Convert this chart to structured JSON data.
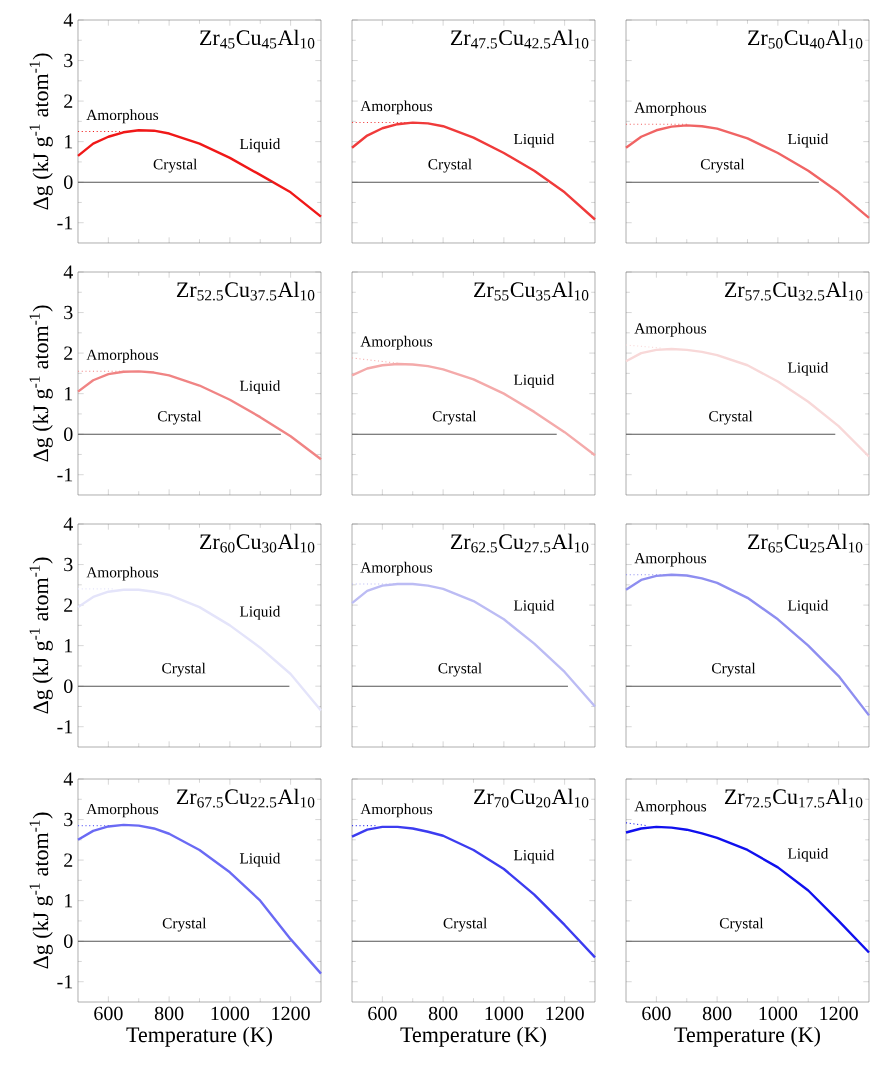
{
  "chart_data": [
    {
      "type": "line",
      "title": "Zr$_{45}$Cu$_{45}$Al$_{10}$",
      "ylabel": "Δg (kJ g$^{-1}$ atom$^{-1}$)",
      "xlim": [
        500,
        1300
      ],
      "ylim": [
        -1.5,
        4
      ],
      "xticks": [
        600,
        800,
        1000,
        1200
      ],
      "yticks": [
        -1,
        0,
        1,
        2,
        3,
        4
      ],
      "tick_labels": "y",
      "series": [
        {
          "name": "Liquid",
          "color": "#f01818",
          "x": [
            500,
            550,
            600,
            650,
            700,
            750,
            800,
            900,
            1000,
            1100,
            1200,
            1300
          ],
          "values": [
            0.65,
            0.95,
            1.12,
            1.23,
            1.28,
            1.27,
            1.2,
            0.95,
            0.6,
            0.18,
            -0.25,
            -0.85
          ]
        },
        {
          "name": "Amorphous",
          "line_style": "dotted",
          "color": "#f01818",
          "x": [
            500,
            690
          ],
          "values": [
            1.25,
            1.25
          ]
        },
        {
          "name": "Crystal",
          "color": "#555555",
          "x": [
            500,
            1140
          ],
          "values": [
            0,
            0
          ]
        }
      ]
    },
    {
      "type": "line",
      "title": "Zr$_{47.5}$Cu$_{42.5}$Al$_{10}$",
      "xlim": [
        500,
        1300
      ],
      "ylim": [
        -1.5,
        4
      ],
      "xticks": [
        600,
        800,
        1000,
        1200
      ],
      "yticks": [
        -1,
        0,
        1,
        2,
        3,
        4
      ],
      "tick_labels": false,
      "series": [
        {
          "name": "Liquid",
          "color": "#f03a3a",
          "x": [
            500,
            550,
            600,
            650,
            700,
            750,
            800,
            900,
            1000,
            1100,
            1200,
            1300
          ],
          "values": [
            0.85,
            1.15,
            1.33,
            1.43,
            1.47,
            1.45,
            1.38,
            1.1,
            0.72,
            0.28,
            -0.25,
            -0.92
          ]
        },
        {
          "name": "Amorphous",
          "line_style": "dotted",
          "color": "#f03a3a",
          "x": [
            500,
            690
          ],
          "values": [
            1.47,
            1.47
          ]
        },
        {
          "name": "Crystal",
          "color": "#555555",
          "x": [
            500,
            1145
          ],
          "values": [
            0,
            0
          ]
        }
      ]
    },
    {
      "type": "line",
      "title": "Zr$_{50}$Cu$_{40}$Al$_{10}$",
      "xlim": [
        500,
        1300
      ],
      "ylim": [
        -1.5,
        4
      ],
      "xticks": [
        600,
        800,
        1000,
        1200
      ],
      "yticks": [
        -1,
        0,
        1,
        2,
        3,
        4
      ],
      "tick_labels": false,
      "series": [
        {
          "name": "Liquid",
          "color": "#f06464",
          "x": [
            500,
            550,
            600,
            650,
            700,
            750,
            800,
            900,
            1000,
            1100,
            1200,
            1300
          ],
          "values": [
            0.85,
            1.12,
            1.28,
            1.37,
            1.4,
            1.38,
            1.32,
            1.08,
            0.72,
            0.28,
            -0.25,
            -0.88
          ]
        },
        {
          "name": "Amorphous",
          "line_style": "dotted",
          "color": "#f06464",
          "x": [
            500,
            705
          ],
          "values": [
            1.43,
            1.43
          ]
        },
        {
          "name": "Crystal",
          "color": "#555555",
          "x": [
            500,
            1135
          ],
          "values": [
            0,
            0
          ]
        }
      ]
    },
    {
      "type": "line",
      "title": "Zr$_{52.5}$Cu$_{37.5}$Al$_{10}$",
      "ylabel": "Δg (kJ g$^{-1}$ atom$^{-1}$)",
      "xlim": [
        500,
        1300
      ],
      "ylim": [
        -1.5,
        4
      ],
      "xticks": [
        600,
        800,
        1000,
        1200
      ],
      "yticks": [
        -1,
        0,
        1,
        2,
        3,
        4
      ],
      "tick_labels": "y",
      "series": [
        {
          "name": "Liquid",
          "color": "#f08484",
          "x": [
            500,
            550,
            600,
            650,
            700,
            750,
            800,
            900,
            1000,
            1100,
            1200,
            1300
          ],
          "values": [
            1.05,
            1.33,
            1.48,
            1.54,
            1.55,
            1.52,
            1.45,
            1.2,
            0.85,
            0.42,
            -0.05,
            -0.62
          ]
        },
        {
          "name": "Amorphous",
          "line_style": "dotted",
          "color": "#f08484",
          "x": [
            500,
            650
          ],
          "values": [
            1.55,
            1.55
          ]
        },
        {
          "name": "Crystal",
          "color": "#555555",
          "x": [
            500,
            1168
          ],
          "values": [
            0,
            0
          ]
        }
      ]
    },
    {
      "type": "line",
      "title": "Zr$_{55}$Cu$_{35}$Al$_{10}$",
      "xlim": [
        500,
        1300
      ],
      "ylim": [
        -1.5,
        4
      ],
      "xticks": [
        600,
        800,
        1000,
        1200
      ],
      "yticks": [
        -1,
        0,
        1,
        2,
        3,
        4
      ],
      "tick_labels": false,
      "series": [
        {
          "name": "Liquid",
          "color": "#f4aaaa",
          "x": [
            500,
            550,
            600,
            650,
            700,
            750,
            800,
            900,
            1000,
            1100,
            1200,
            1300
          ],
          "values": [
            1.45,
            1.62,
            1.7,
            1.73,
            1.72,
            1.68,
            1.6,
            1.35,
            1.0,
            0.55,
            0.05,
            -0.52
          ]
        },
        {
          "name": "Amorphous",
          "line_style": "dotted",
          "color": "#f4aaaa",
          "x": [
            500,
            650
          ],
          "values": [
            1.88,
            1.75
          ]
        },
        {
          "name": "Crystal",
          "color": "#555555",
          "x": [
            500,
            1174
          ],
          "values": [
            0,
            0
          ]
        }
      ]
    },
    {
      "type": "line",
      "title": "Zr$_{57.5}$Cu$_{32.5}$Al$_{10}$",
      "xlim": [
        500,
        1300
      ],
      "ylim": [
        -1.5,
        4
      ],
      "xticks": [
        600,
        800,
        1000,
        1200
      ],
      "yticks": [
        -1,
        0,
        1,
        2,
        3,
        4
      ],
      "tick_labels": false,
      "series": [
        {
          "name": "Liquid",
          "color": "#f8d8d8",
          "x": [
            500,
            550,
            600,
            650,
            700,
            750,
            800,
            900,
            1000,
            1100,
            1200,
            1300
          ],
          "values": [
            1.8,
            2.0,
            2.08,
            2.1,
            2.08,
            2.03,
            1.95,
            1.7,
            1.3,
            0.8,
            0.2,
            -0.55
          ]
        },
        {
          "name": "Amorphous",
          "line_style": "dotted",
          "color": "#f8d8d8",
          "x": [
            500,
            620
          ],
          "values": [
            2.2,
            2.12
          ]
        },
        {
          "name": "Crystal",
          "color": "#555555",
          "x": [
            500,
            1189
          ],
          "values": [
            0,
            0
          ]
        }
      ]
    },
    {
      "type": "line",
      "title": "Zr$_{60}$Cu$_{30}$Al$_{10}$",
      "ylabel": "Δg (kJ g$^{-1}$ atom$^{-1}$)",
      "xlim": [
        500,
        1300
      ],
      "ylim": [
        -1.5,
        4
      ],
      "xticks": [
        600,
        800,
        1000,
        1200
      ],
      "yticks": [
        -1,
        0,
        1,
        2,
        3,
        4
      ],
      "tick_labels": "y",
      "series": [
        {
          "name": "Liquid",
          "color": "#e4e4fa",
          "x": [
            500,
            550,
            600,
            650,
            700,
            750,
            800,
            900,
            1000,
            1100,
            1200,
            1300
          ],
          "values": [
            1.95,
            2.2,
            2.33,
            2.38,
            2.38,
            2.33,
            2.25,
            1.95,
            1.5,
            0.95,
            0.3,
            -0.6
          ]
        },
        {
          "name": "Amorphous",
          "line_style": "dotted",
          "color": "#e4e4fa",
          "x": [
            500,
            620
          ],
          "values": [
            2.4,
            2.4
          ]
        },
        {
          "name": "Crystal",
          "color": "#555555",
          "x": [
            500,
            1196
          ],
          "values": [
            0,
            0
          ]
        }
      ]
    },
    {
      "type": "line",
      "title": "Zr$_{62.5}$Cu$_{27.5}$Al$_{10}$",
      "xlim": [
        500,
        1300
      ],
      "ylim": [
        -1.5,
        4
      ],
      "xticks": [
        600,
        800,
        1000,
        1200
      ],
      "yticks": [
        -1,
        0,
        1,
        2,
        3,
        4
      ],
      "tick_labels": false,
      "series": [
        {
          "name": "Liquid",
          "color": "#bcbcf4",
          "x": [
            500,
            550,
            600,
            650,
            700,
            750,
            800,
            900,
            1000,
            1100,
            1200,
            1300
          ],
          "values": [
            2.05,
            2.35,
            2.48,
            2.52,
            2.52,
            2.48,
            2.4,
            2.1,
            1.65,
            1.05,
            0.35,
            -0.5
          ]
        },
        {
          "name": "Amorphous",
          "line_style": "dotted",
          "color": "#bcbcf4",
          "x": [
            500,
            650
          ],
          "values": [
            2.52,
            2.52
          ]
        },
        {
          "name": "Crystal",
          "color": "#555555",
          "x": [
            500,
            1211
          ],
          "values": [
            0,
            0
          ]
        }
      ]
    },
    {
      "type": "line",
      "title": "Zr$_{65}$Cu$_{25}$Al$_{10}$",
      "xlim": [
        500,
        1300
      ],
      "ylim": [
        -1.5,
        4
      ],
      "xticks": [
        600,
        800,
        1000,
        1200
      ],
      "yticks": [
        -1,
        0,
        1,
        2,
        3,
        4
      ],
      "tick_labels": false,
      "series": [
        {
          "name": "Liquid",
          "color": "#8e8ef0",
          "x": [
            500,
            550,
            600,
            650,
            700,
            750,
            800,
            900,
            1000,
            1100,
            1200,
            1300
          ],
          "values": [
            2.38,
            2.62,
            2.72,
            2.75,
            2.73,
            2.66,
            2.55,
            2.18,
            1.65,
            1.0,
            0.25,
            -0.72
          ]
        },
        {
          "name": "Amorphous",
          "line_style": "dotted",
          "color": "#8e8ef0",
          "x": [
            500,
            630
          ],
          "values": [
            2.75,
            2.75
          ]
        },
        {
          "name": "Crystal",
          "color": "#555555",
          "x": [
            500,
            1208
          ],
          "values": [
            0,
            0
          ]
        }
      ]
    },
    {
      "type": "line",
      "title": "Zr$_{67.5}$Cu$_{22.5}$Al$_{10}$",
      "xlabel": "Temperature (K)",
      "ylabel": "Δg (kJ g$^{-1}$ atom$^{-1}$)",
      "xlim": [
        500,
        1300
      ],
      "ylim": [
        -1.5,
        4
      ],
      "xticks": [
        600,
        800,
        1000,
        1200
      ],
      "yticks": [
        -1,
        0,
        1,
        2,
        3,
        4
      ],
      "series": [
        {
          "name": "Liquid",
          "color": "#6a6af4",
          "x": [
            500,
            550,
            600,
            650,
            700,
            750,
            800,
            900,
            1000,
            1100,
            1200,
            1300
          ],
          "values": [
            2.5,
            2.72,
            2.83,
            2.87,
            2.85,
            2.78,
            2.65,
            2.25,
            1.7,
            1.0,
            0.05,
            -0.8
          ]
        },
        {
          "name": "Amorphous",
          "line_style": "dotted",
          "color": "#6a6af4",
          "x": [
            500,
            620
          ],
          "values": [
            2.85,
            2.85
          ]
        },
        {
          "name": "Crystal",
          "color": "#555555",
          "x": [
            500,
            1200
          ],
          "values": [
            0,
            0
          ]
        }
      ]
    },
    {
      "type": "line",
      "title": "Zr$_{70}$Cu$_{20}$Al$_{10}$",
      "xlabel": "Temperature (K)",
      "xlim": [
        500,
        1300
      ],
      "ylim": [
        -1.5,
        4
      ],
      "xticks": [
        600,
        800,
        1000,
        1200
      ],
      "yticks": [
        -1,
        0,
        1,
        2,
        3,
        4
      ],
      "tick_labels": "x",
      "series": [
        {
          "name": "Liquid",
          "color": "#3c3cf0",
          "x": [
            500,
            550,
            600,
            650,
            700,
            750,
            800,
            900,
            1000,
            1100,
            1200,
            1300
          ],
          "values": [
            2.58,
            2.75,
            2.82,
            2.82,
            2.78,
            2.7,
            2.6,
            2.25,
            1.78,
            1.15,
            0.4,
            -0.4
          ]
        },
        {
          "name": "Amorphous",
          "line_style": "dotted",
          "color": "#3c3cf0",
          "x": [
            500,
            580
          ],
          "values": [
            2.85,
            2.85
          ]
        },
        {
          "name": "Crystal",
          "color": "#555555",
          "x": [
            500,
            1245
          ],
          "values": [
            0,
            0
          ]
        }
      ]
    },
    {
      "type": "line",
      "title": "Zr$_{72.5}$Cu$_{17.5}$Al$_{10}$",
      "xlabel": "Temperature (K)",
      "xlim": [
        500,
        1300
      ],
      "ylim": [
        -1.5,
        4
      ],
      "xticks": [
        600,
        800,
        1000,
        1200
      ],
      "yticks": [
        -1,
        0,
        1,
        2,
        3,
        4
      ],
      "tick_labels": "x",
      "series": [
        {
          "name": "Liquid",
          "color": "#1010ee",
          "x": [
            500,
            550,
            600,
            650,
            700,
            750,
            800,
            900,
            1000,
            1100,
            1200,
            1300
          ],
          "values": [
            2.68,
            2.78,
            2.82,
            2.8,
            2.75,
            2.66,
            2.55,
            2.25,
            1.82,
            1.25,
            0.5,
            -0.28
          ]
        },
        {
          "name": "Amorphous",
          "line_style": "dotted",
          "color": "#1010ee",
          "x": [
            500,
            570
          ],
          "values": [
            2.92,
            2.85
          ]
        },
        {
          "name": "Crystal",
          "color": "#555555",
          "x": [
            500,
            1260
          ],
          "values": [
            0,
            0
          ]
        }
      ]
    }
  ]
}
